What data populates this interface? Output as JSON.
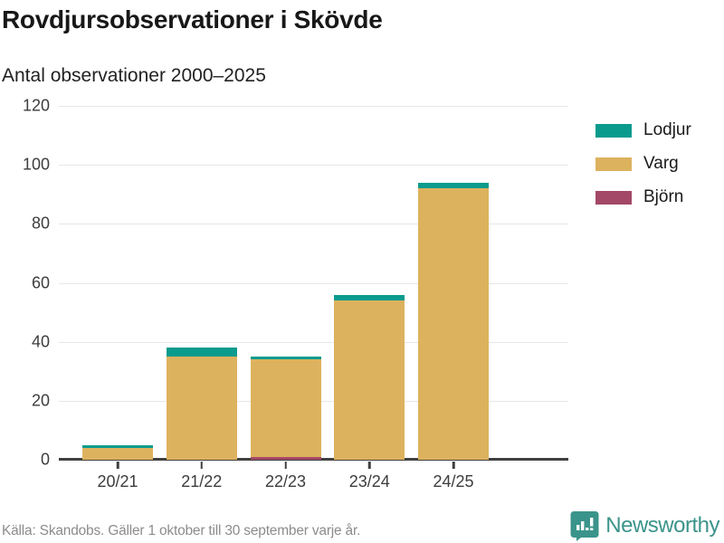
{
  "header": {
    "title": "Rovdjursobservationer i Skövde",
    "subtitle": "Antal observationer 2000–2025"
  },
  "chart_data": {
    "type": "bar",
    "stacked": true,
    "title": "Rovdjursobservationer i Skövde",
    "subtitle": "Antal observationer 2000–2025",
    "categories": [
      "20/21",
      "21/22",
      "22/23",
      "23/24",
      "24/25"
    ],
    "series": [
      {
        "name": "Lodjur",
        "color": "#0a9b8d",
        "values": [
          1,
          3,
          1,
          2,
          2
        ]
      },
      {
        "name": "Varg",
        "color": "#ddb25e",
        "values": [
          4,
          35,
          33,
          54,
          92
        ]
      },
      {
        "name": "Björn",
        "color": "#a34867",
        "values": [
          0,
          0,
          1,
          0,
          0
        ]
      }
    ],
    "stack_order_bottom_to_top": [
      "Björn",
      "Varg",
      "Lodjur"
    ],
    "ylim": [
      0,
      120
    ],
    "yticks": [
      0,
      20,
      40,
      60,
      80,
      100,
      120
    ],
    "grid": true,
    "legend_position": "right"
  },
  "legend": {
    "items": [
      {
        "label": "Lodjur",
        "color": "#0a9b8d"
      },
      {
        "label": "Varg",
        "color": "#ddb25e"
      },
      {
        "label": "Björn",
        "color": "#a34867"
      }
    ]
  },
  "footer": {
    "source": "Källa: Skandobs. Gäller 1 oktober till 30 september varje år.",
    "brand": "Newsworthy",
    "brand_color": "#3b948b"
  },
  "colors": {
    "axis": "#404040",
    "grid": "#e7e7e7",
    "text_dark": "#181818",
    "text_gray": "#8c8c8c"
  }
}
